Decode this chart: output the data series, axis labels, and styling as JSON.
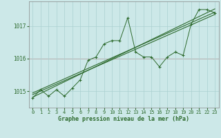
{
  "x": [
    0,
    1,
    2,
    3,
    4,
    5,
    6,
    7,
    8,
    9,
    10,
    11,
    12,
    13,
    14,
    15,
    16,
    17,
    18,
    19,
    20,
    21,
    22,
    23
  ],
  "line1": [
    1014.8,
    1015.05,
    1014.85,
    1015.05,
    1014.85,
    1015.1,
    1015.35,
    1015.95,
    1016.05,
    1016.45,
    1016.55,
    1016.55,
    1017.25,
    1016.2,
    1016.05,
    1016.05,
    1015.75,
    1016.05,
    1016.2,
    1016.1,
    1017.05,
    1017.5,
    1017.5,
    1017.4
  ],
  "trend1_x": [
    0,
    23
  ],
  "trend1_y": [
    1014.82,
    1017.52
  ],
  "trend2_x": [
    0,
    23
  ],
  "trend2_y": [
    1014.9,
    1017.35
  ],
  "trend3_x": [
    0,
    23
  ],
  "trend3_y": [
    1014.95,
    1017.42
  ],
  "line_color": "#2d6a2d",
  "bg_color": "#cce8e8",
  "grid_major_color": "#aad0d0",
  "grid_minor_color": "#bbdede",
  "red_line_y": 1016.0,
  "red_line_color": "#cc4444",
  "xlabel": "Graphe pression niveau de la mer (hPa)",
  "ylim": [
    1014.5,
    1017.75
  ],
  "xlim": [
    -0.5,
    23.5
  ],
  "yticks": [
    1015,
    1016,
    1017
  ],
  "xticks": [
    0,
    1,
    2,
    3,
    4,
    5,
    6,
    7,
    8,
    9,
    10,
    11,
    12,
    13,
    14,
    15,
    16,
    17,
    18,
    19,
    20,
    21,
    22,
    23
  ]
}
